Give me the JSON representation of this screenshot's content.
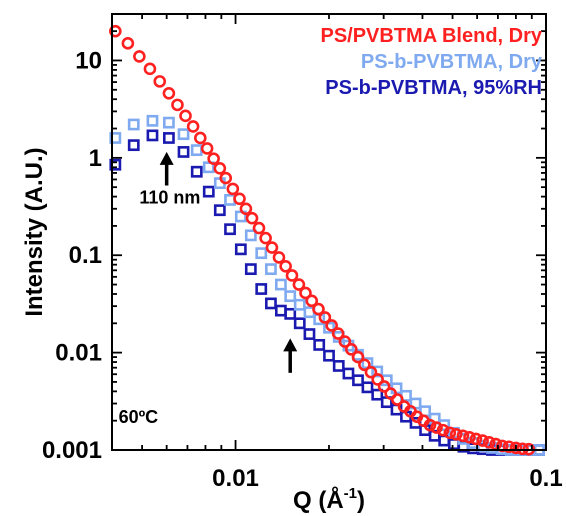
{
  "chart_data": {
    "type": "scatter",
    "title": "",
    "xlabel": "Q (Å",
    "xlabel_sup": "-1",
    "xlabel_close": ")",
    "ylabel": "Intensity (A.U.)",
    "xscale": "log",
    "yscale": "log",
    "xlim": [
      0.004,
      0.1
    ],
    "ylim": [
      0.001,
      30
    ],
    "x_ticks": [
      {
        "value": 0.01,
        "label": "0.01"
      },
      {
        "value": 0.1,
        "label": "0.1"
      }
    ],
    "y_ticks": [
      {
        "value": 10,
        "label": "10"
      },
      {
        "value": 1,
        "label": "1"
      },
      {
        "value": 0.1,
        "label": "0.1"
      },
      {
        "value": 0.01,
        "label": "0.01"
      },
      {
        "value": 0.001,
        "label": "0.001"
      }
    ],
    "grid": false,
    "legend_position": "top-right",
    "series": [
      {
        "name": "PS/PVBTMA Blend, Dry",
        "color": "#ff2020",
        "marker": "circle",
        "x": [
          0.0041,
          0.0045,
          0.0049,
          0.0053,
          0.0057,
          0.0061,
          0.0065,
          0.0069,
          0.0073,
          0.0077,
          0.0081,
          0.0085,
          0.0089,
          0.0093,
          0.0098,
          0.0103,
          0.0108,
          0.0113,
          0.0119,
          0.0125,
          0.0131,
          0.0138,
          0.0145,
          0.0152,
          0.016,
          0.0168,
          0.0176,
          0.0185,
          0.0194,
          0.0204,
          0.0214,
          0.0225,
          0.0236,
          0.0248,
          0.026,
          0.0273,
          0.0287,
          0.0301,
          0.0316,
          0.0332,
          0.0349,
          0.0366,
          0.0384,
          0.0403,
          0.0423,
          0.0444,
          0.0466,
          0.049,
          0.0514,
          0.054,
          0.0567,
          0.0595,
          0.0625,
          0.0656,
          0.0689,
          0.0723,
          0.076,
          0.08,
          0.084,
          0.088
        ],
        "y": [
          20,
          15,
          11,
          8.2,
          6.1,
          4.6,
          3.5,
          2.7,
          2.1,
          1.6,
          1.25,
          0.98,
          0.78,
          0.62,
          0.48,
          0.38,
          0.3,
          0.24,
          0.19,
          0.15,
          0.12,
          0.095,
          0.077,
          0.062,
          0.05,
          0.041,
          0.034,
          0.028,
          0.023,
          0.019,
          0.0157,
          0.013,
          0.0108,
          0.009,
          0.0075,
          0.0063,
          0.0053,
          0.0045,
          0.0038,
          0.0033,
          0.0028,
          0.0025,
          0.0022,
          0.002,
          0.0018,
          0.0017,
          0.0016,
          0.0015,
          0.00145,
          0.0014,
          0.00135,
          0.0013,
          0.00125,
          0.0012,
          0.00115,
          0.0011,
          0.00108,
          0.00105,
          0.00103,
          0.00102
        ]
      },
      {
        "name": "PS-b-PVBTMA, Dry",
        "color": "#7faaf0",
        "marker": "square",
        "x": [
          0.0041,
          0.0047,
          0.0054,
          0.0061,
          0.0068,
          0.0075,
          0.0082,
          0.0089,
          0.0096,
          0.0104,
          0.0112,
          0.0121,
          0.013,
          0.014,
          0.015,
          0.0161,
          0.0173,
          0.0186,
          0.02,
          0.0215,
          0.0231,
          0.0248,
          0.0266,
          0.0286,
          0.0307,
          0.033,
          0.0354,
          0.038,
          0.0408,
          0.0438,
          0.047,
          0.0505,
          0.0542,
          0.0582,
          0.0625,
          0.067,
          0.072,
          0.077,
          0.083,
          0.089,
          0.095
        ],
        "y": [
          1.6,
          2.2,
          2.4,
          2.3,
          1.75,
          1.2,
          0.8,
          0.55,
          0.37,
          0.25,
          0.16,
          0.105,
          0.072,
          0.05,
          0.038,
          0.031,
          0.026,
          0.022,
          0.018,
          0.0145,
          0.0118,
          0.0095,
          0.0078,
          0.0064,
          0.0052,
          0.0043,
          0.0036,
          0.003,
          0.0025,
          0.0021,
          0.0018,
          0.0015,
          0.0013,
          0.00118,
          0.0011,
          0.00105,
          0.00102,
          0.001,
          0.001,
          0.001,
          0.001
        ]
      },
      {
        "name": "PS-b-PVBTMA, 95%RH",
        "color": "#1a1ab0",
        "marker": "square",
        "x": [
          0.0041,
          0.0047,
          0.0054,
          0.0061,
          0.0068,
          0.0075,
          0.0082,
          0.0089,
          0.0096,
          0.0104,
          0.0112,
          0.0121,
          0.013,
          0.014,
          0.015,
          0.0161,
          0.0173,
          0.0186,
          0.02,
          0.0215,
          0.0231,
          0.0248,
          0.0266,
          0.0286,
          0.0307,
          0.033,
          0.0354,
          0.038,
          0.0408,
          0.0438,
          0.047,
          0.0505,
          0.0542,
          0.0582,
          0.0625,
          0.067,
          0.072,
          0.077,
          0.083,
          0.089,
          0.095
        ],
        "y": [
          0.85,
          1.35,
          1.7,
          1.6,
          1.15,
          0.72,
          0.45,
          0.29,
          0.185,
          0.115,
          0.072,
          0.045,
          0.032,
          0.027,
          0.025,
          0.02,
          0.0155,
          0.012,
          0.0093,
          0.0073,
          0.0061,
          0.0052,
          0.0044,
          0.0037,
          0.0031,
          0.0026,
          0.0022,
          0.0019,
          0.0016,
          0.0014,
          0.00125,
          0.00115,
          0.00108,
          0.00104,
          0.00102,
          0.001,
          0.001,
          0.001,
          0.001,
          0.001,
          0.001
        ]
      }
    ],
    "annotations": [
      {
        "text": "110 nm",
        "x": 0.0049,
        "y": 0.34
      },
      {
        "text": "60ºC",
        "x": 0.0042,
        "y": 0.0019
      }
    ],
    "arrows": [
      {
        "x": 0.006,
        "y_tail": 0.52,
        "y_head": 1.15
      },
      {
        "x": 0.015,
        "y_tail": 0.0062,
        "y_head": 0.014
      }
    ]
  }
}
